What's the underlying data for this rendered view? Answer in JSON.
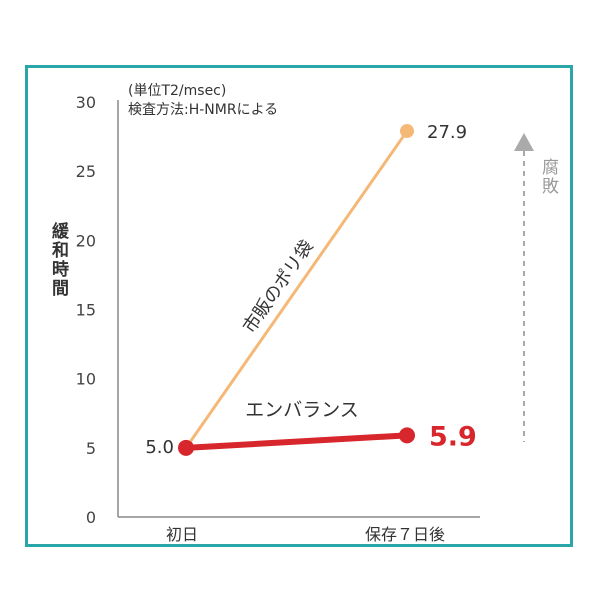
{
  "chart_data": {
    "type": "line",
    "note_line1": "(単位T2/msec)",
    "note_line2": "検査方法:H-NMRによる",
    "ylabel": "緩和時間",
    "categories": [
      "初日",
      "保存７日後"
    ],
    "ylim": [
      0,
      30
    ],
    "yticks": [
      "0",
      "5",
      "10",
      "15",
      "20",
      "25",
      "30"
    ],
    "series": [
      {
        "name": "市販のポリ袋",
        "values": [
          5.0,
          27.9
        ],
        "color": "#f5b876",
        "value_labels": [
          "",
          "27.9"
        ]
      },
      {
        "name": "エンバランス",
        "values": [
          5.0,
          5.9
        ],
        "color": "#d7262c",
        "value_labels": [
          "5.0",
          "5.9"
        ]
      }
    ],
    "annotation": "腐敗",
    "annotation_color": "#999999",
    "frame_color": "#2ba6a8"
  }
}
